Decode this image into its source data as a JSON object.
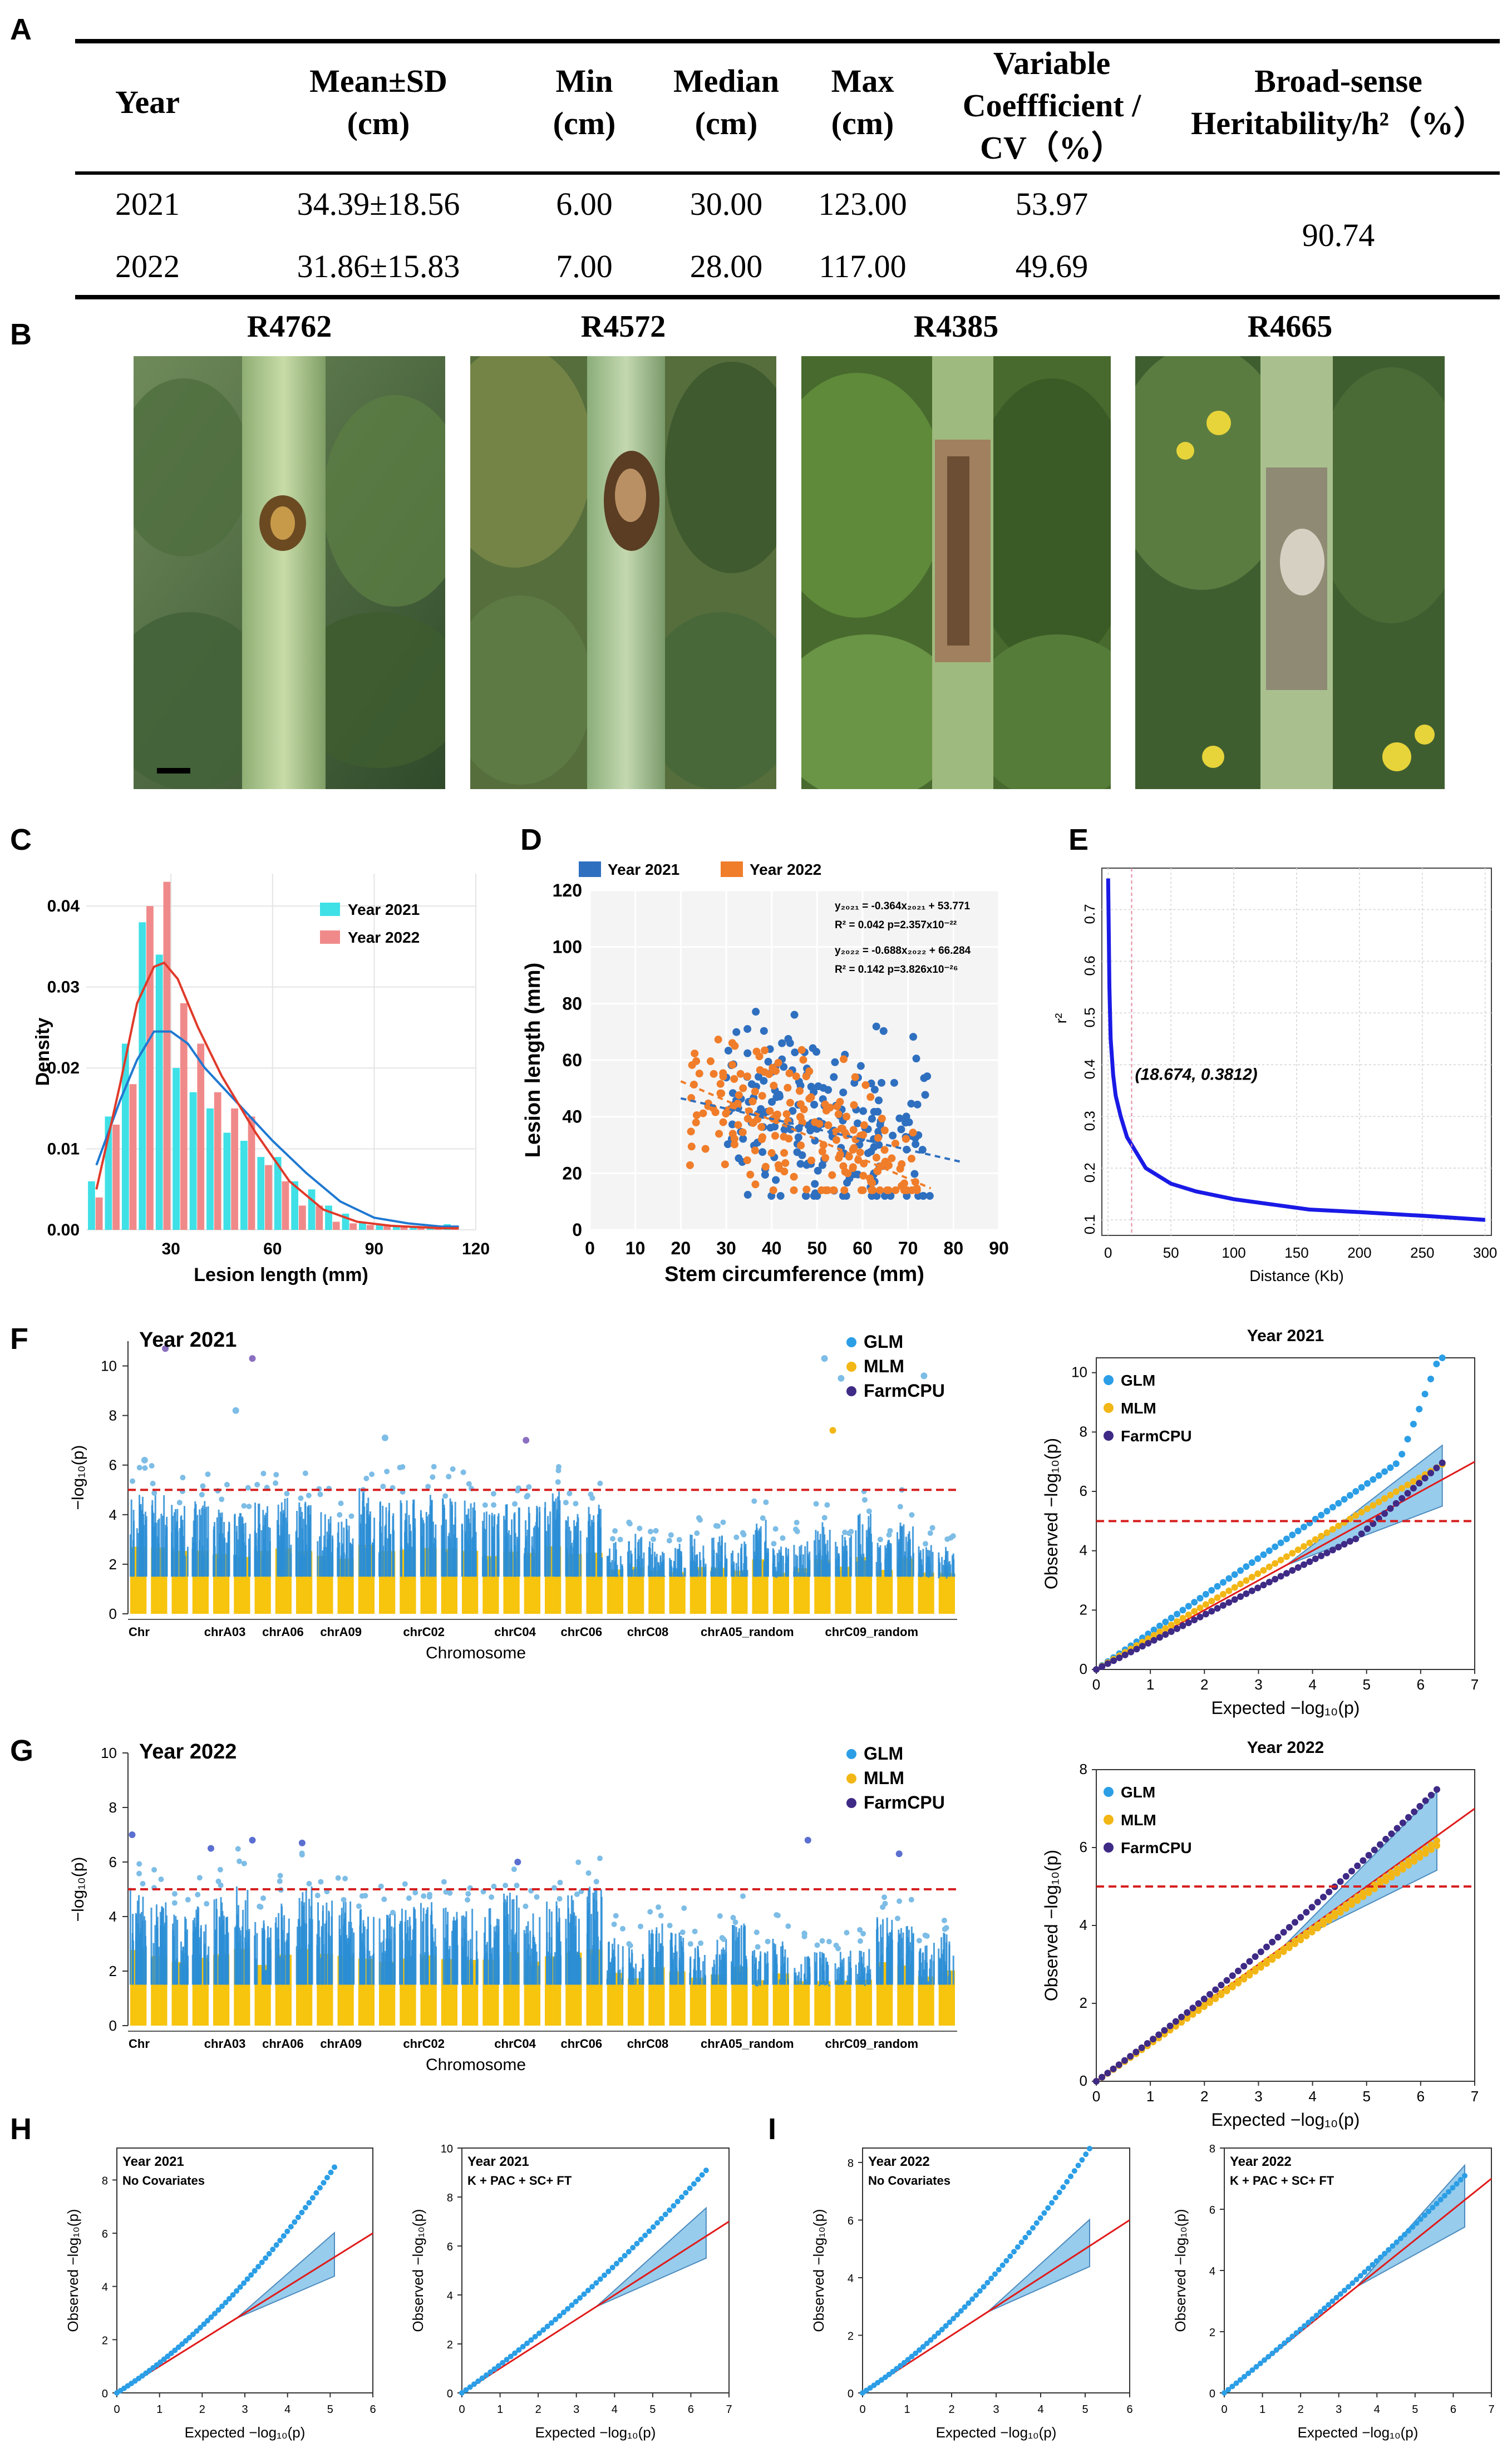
{
  "panel_labels": {
    "A": "A",
    "B": "B",
    "C": "C",
    "D": "D",
    "E": "E",
    "F": "F",
    "G": "G",
    "H": "H",
    "I": "I"
  },
  "tableA": {
    "headers": [
      "Year",
      "Mean±SD\n(cm)",
      "Min\n(cm)",
      "Median\n(cm)",
      "Max\n(cm)",
      "Variable\nCoeffficient /\nCV（%）",
      "Broad-sense\nHeritability/h²（%）"
    ],
    "rows": [
      [
        "2021",
        "34.39±18.56",
        "6.00",
        "30.00",
        "123.00",
        "53.97"
      ],
      [
        "2022",
        "31.86±15.83",
        "7.00",
        "28.00",
        "117.00",
        "49.69"
      ]
    ],
    "heritability": "90.74"
  },
  "photos": [
    {
      "title": "R4762"
    },
    {
      "title": "R4572"
    },
    {
      "title": "R4385"
    },
    {
      "title": "R4665"
    }
  ],
  "chart_data": [
    {
      "panel": "C",
      "type": "bar",
      "xlabel": "Lesion length (mm)",
      "ylabel": "Density",
      "xticks": [
        "30",
        "60",
        "90",
        "120"
      ],
      "yticks": [
        "0.00",
        "0.01",
        "0.02",
        "0.03",
        "0.04"
      ],
      "xlim": [
        5,
        120
      ],
      "ylim": [
        0,
        0.044
      ],
      "legend": [
        "Year 2021",
        "Year 2022"
      ],
      "colors": {
        "y2021": "#3fe0e6",
        "y2022": "#f08a8a",
        "curve2021": "#1f78d1",
        "curve2022": "#e03a2a"
      },
      "bins": [
        10,
        15,
        20,
        25,
        30,
        35,
        40,
        45,
        50,
        55,
        60,
        65,
        70,
        75,
        80,
        85,
        90,
        95,
        100,
        105,
        110,
        115
      ],
      "series": [
        {
          "name": "Year 2021",
          "values": [
            0.006,
            0.014,
            0.023,
            0.038,
            0.034,
            0.02,
            0.017,
            0.015,
            0.012,
            0.011,
            0.009,
            0.009,
            0.006,
            0.005,
            0.003,
            0.002,
            0.001,
            0.0007,
            0.0005,
            0.0004,
            0.0003,
            0.0007
          ]
        },
        {
          "name": "Year 2022",
          "values": [
            0.004,
            0.013,
            0.018,
            0.04,
            0.043,
            0.028,
            0.023,
            0.017,
            0.015,
            0.014,
            0.008,
            0.006,
            0.003,
            0.003,
            0.001,
            0.0008,
            0.0006,
            0.0005,
            0.0003,
            0.0003,
            0.0002,
            0.0005
          ]
        }
      ],
      "curves": [
        {
          "name": "Year 2021",
          "x": [
            8,
            15,
            20,
            25,
            30,
            35,
            40,
            50,
            60,
            70,
            80,
            90,
            100,
            110,
            115
          ],
          "y": [
            0.008,
            0.016,
            0.021,
            0.0245,
            0.0245,
            0.023,
            0.02,
            0.0155,
            0.011,
            0.007,
            0.0035,
            0.0015,
            0.0008,
            0.0004,
            0.0004
          ]
        },
        {
          "name": "Year 2022",
          "x": [
            8,
            15,
            20,
            25,
            28,
            32,
            38,
            45,
            55,
            65,
            75,
            85,
            95,
            110,
            115
          ],
          "y": [
            0.005,
            0.018,
            0.028,
            0.0325,
            0.033,
            0.031,
            0.025,
            0.019,
            0.012,
            0.006,
            0.0025,
            0.001,
            0.0005,
            0.0002,
            0.0002
          ]
        }
      ]
    },
    {
      "panel": "D",
      "type": "scatter",
      "xlabel": "Stem circumference (mm)",
      "ylabel": "Lesion length (mm)",
      "xticks": [
        "0",
        "10",
        "20",
        "30",
        "40",
        "50",
        "60",
        "70",
        "80",
        "90"
      ],
      "yticks": [
        "0",
        "20",
        "40",
        "60",
        "80",
        "100",
        "120"
      ],
      "xlim": [
        0,
        90
      ],
      "ylim": [
        0,
        120
      ],
      "legend": [
        "Year 2021",
        "Year 2022"
      ],
      "colors": {
        "y2021": "#2f6fbf",
        "y2022": "#f07d2a"
      },
      "eq1": "y₂₀₂₁ = -0.364x₂₀₂₁ + 53.771",
      "eq1b": "R² = 0.042     p=2.357x10⁻²²",
      "eq2": "y₂₀₂₂ = -0.688x₂₀₂₂ + 66.284",
      "eq2b": "R² = 0.142     p=3.826x10⁻²⁶",
      "fit2021": {
        "slope": -0.364,
        "intercept": 53.771,
        "xrange": [
          20,
          82
        ]
      },
      "fit2022": {
        "slope": -0.688,
        "intercept": 66.284,
        "xrange": [
          20,
          75
        ]
      }
    },
    {
      "panel": "E",
      "type": "line",
      "xlabel": "Distance (Kb)",
      "ylabel": "r²",
      "xticks": [
        "0",
        "50",
        "100",
        "150",
        "200",
        "250",
        "300"
      ],
      "yticks": [
        "0.1",
        "0.2",
        "0.3",
        "0.4",
        "0.5",
        "0.6",
        "0.7"
      ],
      "xlim": [
        -5,
        305
      ],
      "ylim": [
        0.07,
        0.78
      ],
      "annotation": "(18.674, 0.3812)",
      "marker": {
        "x": 18.674,
        "y": 0.3812
      },
      "x": [
        0,
        1,
        2,
        4,
        6,
        10,
        15,
        20,
        30,
        40,
        50,
        70,
        100,
        130,
        160,
        200,
        250,
        300
      ],
      "y": [
        0.76,
        0.55,
        0.45,
        0.38,
        0.34,
        0.3,
        0.26,
        0.24,
        0.2,
        0.185,
        0.17,
        0.155,
        0.14,
        0.13,
        0.12,
        0.115,
        0.108,
        0.1
      ]
    },
    {
      "panel": "F-manhattan",
      "type": "scatter",
      "title": "Year 2021",
      "xlabel": "Chromosome",
      "ylabel": "−log₁₀(p)",
      "xticks": [
        "Chr",
        "chrA03",
        "chrA06",
        "chrA09",
        "chrC02",
        "chrC04",
        "chrC06",
        "chrC08",
        "chrA05_random",
        "chrC09_random"
      ],
      "yticks": [
        "0",
        "2",
        "4",
        "6",
        "8",
        "10"
      ],
      "ylim": [
        0,
        11
      ],
      "threshold": 5,
      "legend": [
        "GLM",
        "MLM",
        "FarmCPU"
      ]
    },
    {
      "panel": "F-qq",
      "type": "scatter",
      "title": "Year 2021",
      "xlabel": "Expected  −log₁₀(p)",
      "ylabel": "Observed  −log₁₀(p)",
      "xticks": [
        "0",
        "1",
        "2",
        "3",
        "4",
        "5",
        "6",
        "7"
      ],
      "yticks": [
        "0",
        "2",
        "4",
        "6",
        "8",
        "10"
      ],
      "legend": [
        "GLM",
        "MLM",
        "FarmCPU"
      ],
      "threshold": 5
    },
    {
      "panel": "G-manhattan",
      "type": "scatter",
      "title": "Year 2022",
      "xlabel": "Chromosome",
      "ylabel": "−log₁₀(p)",
      "xticks": [
        "Chr",
        "chrA03",
        "chrA06",
        "chrA09",
        "chrC02",
        "chrC04",
        "chrC06",
        "chrC08",
        "chrA05_random",
        "chrC09_random"
      ],
      "yticks": [
        "0",
        "2",
        "4",
        "6",
        "8",
        "10"
      ],
      "ylim": [
        0,
        10
      ],
      "threshold": 5,
      "legend": [
        "GLM",
        "MLM",
        "FarmCPU"
      ]
    },
    {
      "panel": "G-qq",
      "type": "scatter",
      "title": "Year 2022",
      "xlabel": "Expected  −log₁₀(p)",
      "ylabel": "Observed  −log₁₀(p)",
      "xticks": [
        "0",
        "1",
        "2",
        "3",
        "4",
        "5",
        "6",
        "7"
      ],
      "yticks": [
        "0",
        "2",
        "4",
        "6",
        "8"
      ],
      "legend": [
        "GLM",
        "MLM",
        "FarmCPU"
      ],
      "threshold": 5
    },
    {
      "panel": "H1",
      "type": "scatter",
      "title": "Year 2021",
      "subtitle": "No Covariates",
      "xlabel": "Expected  −log₁₀(p)",
      "ylabel": "Observed  −log₁₀(p)",
      "xticks": [
        "0",
        "1",
        "2",
        "3",
        "4",
        "5",
        "6"
      ],
      "yticks": [
        "0",
        "2",
        "4",
        "6",
        "8"
      ]
    },
    {
      "panel": "H2",
      "type": "scatter",
      "title": "Year 2021",
      "subtitle": "K + PAC + SC+ FT",
      "xlabel": "Expected  −log₁₀(p)",
      "ylabel": "Observed  −log₁₀(p)",
      "xticks": [
        "0",
        "1",
        "2",
        "3",
        "4",
        "5",
        "6",
        "7"
      ],
      "yticks": [
        "0",
        "2",
        "4",
        "6",
        "8",
        "10"
      ]
    },
    {
      "panel": "I1",
      "type": "scatter",
      "title": "Year 2022",
      "subtitle": "No Covariates",
      "xlabel": "Expected  −log₁₀(p)",
      "ylabel": "Observed  −log₁₀(p)",
      "xticks": [
        "0",
        "1",
        "2",
        "3",
        "4",
        "5",
        "6"
      ],
      "yticks": [
        "0",
        "2",
        "4",
        "6",
        "8"
      ]
    },
    {
      "panel": "I2",
      "type": "scatter",
      "title": "Year 2022",
      "subtitle": "K + PAC + SC+ FT",
      "xlabel": "Expected  −log₁₀(p)",
      "ylabel": "Observed  −log₁₀(p)",
      "xticks": [
        "0",
        "1",
        "2",
        "3",
        "4",
        "5",
        "6",
        "7"
      ],
      "yticks": [
        "0",
        "2",
        "4",
        "6",
        "8"
      ]
    }
  ]
}
